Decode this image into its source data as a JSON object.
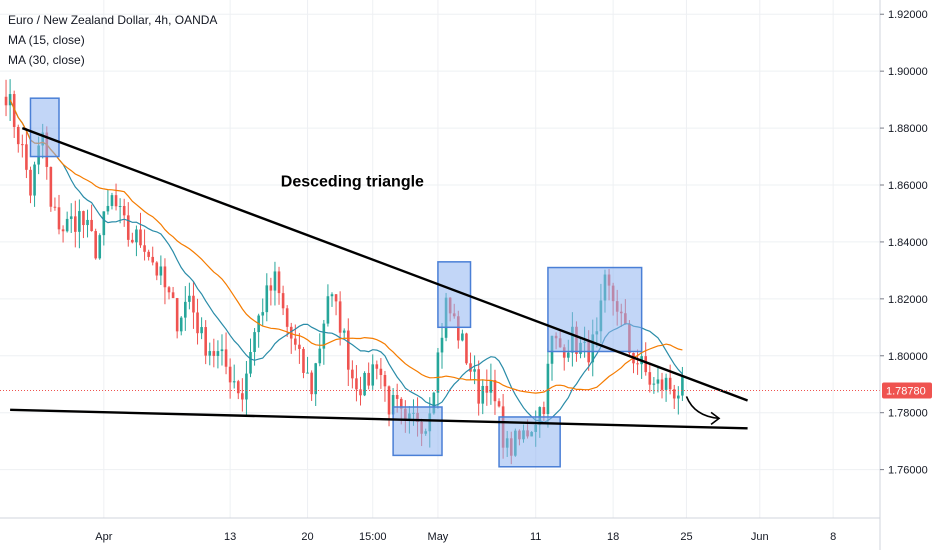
{
  "legend": {
    "symbol": "Euro / New Zealand Dollar, 4h, OANDA",
    "ma_fast": "MA (15, close)",
    "ma_slow": "MA (30, close)"
  },
  "colors": {
    "up": "#26a69a",
    "down": "#ef5350",
    "ma_fast": "#2a8ca8",
    "ma_slow": "#f57c00",
    "price_line": "#ef5350",
    "price_tag": "#ef5350",
    "box_fill": "#90b4f0",
    "box_stroke": "#4a7fd6",
    "trend": "#000000",
    "grid": "#eef0f3"
  },
  "chart_data": {
    "type": "candlestick",
    "y_axis": {
      "ylim": [
        1.743,
        1.925
      ],
      "ticks": [
        "1.76000",
        "1.78000",
        "1.80000",
        "1.82000",
        "1.84000",
        "1.86000",
        "1.88000",
        "1.90000",
        "1.92000"
      ],
      "tick_values": [
        1.76,
        1.78,
        1.8,
        1.82,
        1.84,
        1.86,
        1.88,
        1.9,
        1.92
      ],
      "last_price": "1.78780",
      "last_value": 1.7878
    },
    "x_axis": {
      "ticks": [
        "Apr",
        "13",
        "20",
        "15:00",
        "May",
        "11",
        "18",
        "25",
        "Jun",
        "8"
      ],
      "tick_index": [
        24,
        55,
        74,
        90,
        106,
        130,
        149,
        167,
        185,
        203
      ]
    },
    "x_count": 215,
    "grid": true,
    "annotations": {
      "title": "Desceding triangle",
      "upper_trendline": [
        [
          4,
          1.88
        ],
        [
          182,
          1.7843
        ]
      ],
      "lower_trendline": [
        [
          1,
          1.781
        ],
        [
          182,
          1.7745
        ]
      ],
      "arrow": {
        "from": [
          167,
          1.7857
        ],
        "to": [
          175,
          1.778
        ]
      },
      "boxes": [
        {
          "x0": 6,
          "x1": 13,
          "y0": 1.87,
          "y1": 1.8905
        },
        {
          "x0": 95,
          "x1": 107,
          "y0": 1.765,
          "y1": 1.782
        },
        {
          "x0": 106,
          "x1": 114,
          "y0": 1.81,
          "y1": 1.833
        },
        {
          "x0": 121,
          "x1": 136,
          "y0": 1.761,
          "y1": 1.7785
        },
        {
          "x0": 133,
          "x1": 156,
          "y0": 1.8015,
          "y1": 1.831
        }
      ]
    },
    "price_path": [
      [
        0,
        1.893
      ],
      [
        4,
        1.872
      ],
      [
        6,
        1.858
      ],
      [
        9,
        1.878
      ],
      [
        11,
        1.851
      ],
      [
        14,
        1.845
      ],
      [
        18,
        1.849
      ],
      [
        22,
        1.838
      ],
      [
        26,
        1.855
      ],
      [
        30,
        1.842
      ],
      [
        34,
        1.84
      ],
      [
        38,
        1.827
      ],
      [
        42,
        1.813
      ],
      [
        45,
        1.821
      ],
      [
        48,
        1.806
      ],
      [
        52,
        1.8
      ],
      [
        56,
        1.792
      ],
      [
        58,
        1.786
      ],
      [
        60,
        1.803
      ],
      [
        63,
        1.818
      ],
      [
        66,
        1.826
      ],
      [
        69,
        1.81
      ],
      [
        72,
        1.798
      ],
      [
        75,
        1.789
      ],
      [
        77,
        1.804
      ],
      [
        79,
        1.822
      ],
      [
        82,
        1.812
      ],
      [
        85,
        1.793
      ],
      [
        88,
        1.789
      ],
      [
        91,
        1.799
      ],
      [
        94,
        1.783
      ],
      [
        96,
        1.781
      ],
      [
        98,
        1.774
      ],
      [
        101,
        1.779
      ],
      [
        103,
        1.776
      ],
      [
        106,
        1.8
      ],
      [
        108,
        1.818
      ],
      [
        110,
        1.812
      ],
      [
        113,
        1.8
      ],
      [
        116,
        1.787
      ],
      [
        118,
        1.792
      ],
      [
        121,
        1.778
      ],
      [
        123,
        1.767
      ],
      [
        126,
        1.77
      ],
      [
        129,
        1.776
      ],
      [
        132,
        1.784
      ],
      [
        134,
        1.805
      ],
      [
        136,
        1.803
      ],
      [
        139,
        1.806
      ],
      [
        142,
        1.801
      ],
      [
        145,
        1.805
      ],
      [
        147,
        1.824
      ],
      [
        150,
        1.818
      ],
      [
        153,
        1.802
      ],
      [
        156,
        1.796
      ],
      [
        159,
        1.789
      ],
      [
        162,
        1.79
      ],
      [
        164,
        1.788
      ],
      [
        166,
        1.7878
      ]
    ],
    "series": [
      {
        "name": "MA (15, close)"
      },
      {
        "name": "MA (30, close)"
      }
    ]
  }
}
